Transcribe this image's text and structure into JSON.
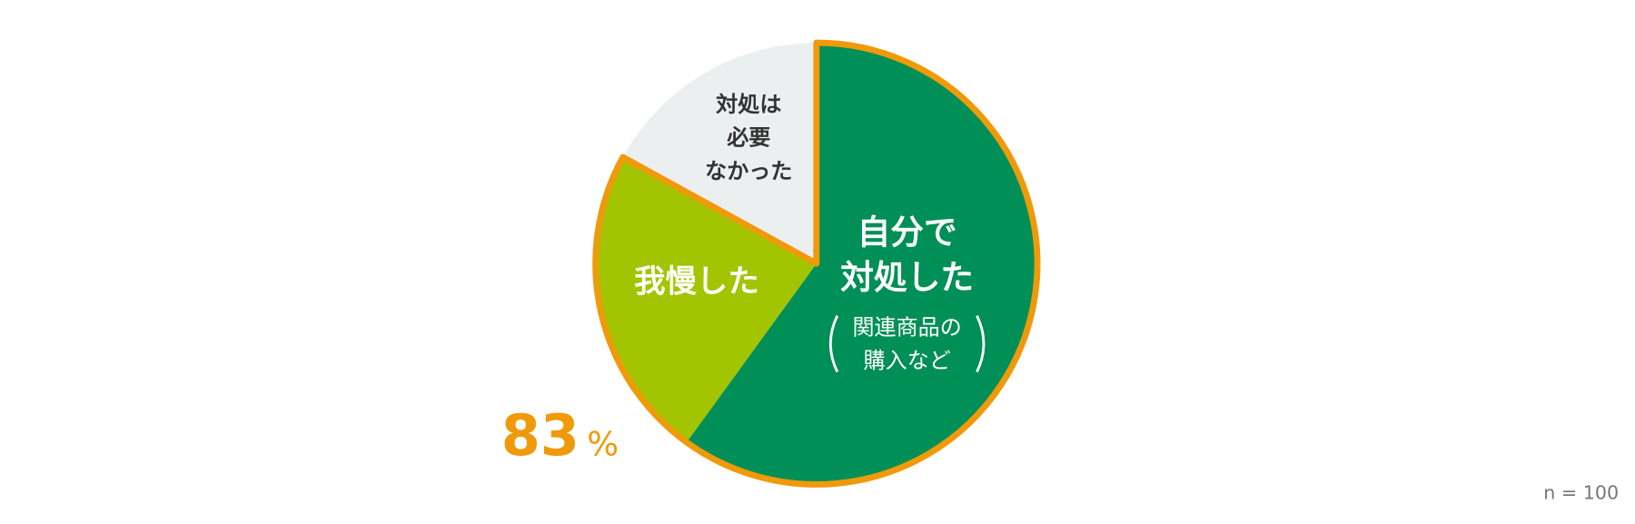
{
  "chart_data": {
    "type": "pie",
    "categories": [
      [
        "自分で",
        "対処した"
      ],
      [
        "我慢した"
      ],
      [
        "対処は",
        "必要",
        "なかった"
      ]
    ],
    "sublabel": [
      "関連商品の",
      "購入など"
    ],
    "values": [
      60,
      23,
      17
    ],
    "colors": [
      "#008f56",
      "#a3c400",
      "#eceff0"
    ],
    "label_colors": [
      "#ffffff",
      "#ffffff",
      "#333333"
    ],
    "highlight": {
      "value": 83,
      "unit": "%",
      "color": "#ef9a0a"
    },
    "note": "n = 100"
  }
}
